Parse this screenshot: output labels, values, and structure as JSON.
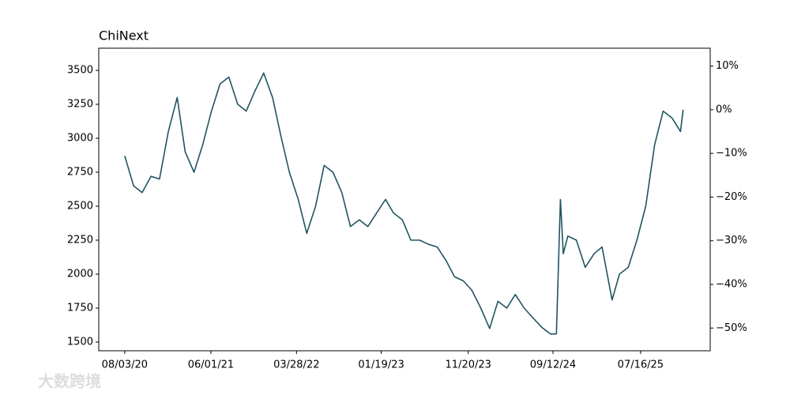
{
  "chart_data": {
    "type": "line",
    "title": "ChiNext",
    "x": [
      "08/03/20",
      "09/03/20",
      "10/03/20",
      "11/03/20",
      "12/03/20",
      "01/03/21",
      "02/03/21",
      "03/03/21",
      "04/03/21",
      "05/03/21",
      "06/03/21",
      "07/03/21",
      "08/03/21",
      "09/03/21",
      "10/03/21",
      "11/03/21",
      "12/03/21",
      "01/03/22",
      "02/03/22",
      "03/03/22",
      "04/03/22",
      "05/03/22",
      "06/03/22",
      "07/03/22",
      "08/03/22",
      "09/03/22",
      "10/03/22",
      "11/03/22",
      "12/03/22",
      "01/03/23",
      "02/03/23",
      "03/03/23",
      "04/03/23",
      "05/03/23",
      "06/03/23",
      "07/03/23",
      "08/03/23",
      "09/03/23",
      "10/03/23",
      "11/03/23",
      "12/03/23",
      "01/03/24",
      "02/03/24",
      "03/03/24",
      "04/03/24",
      "05/03/24",
      "06/03/24",
      "07/03/24",
      "08/03/24",
      "09/03/24",
      "09/24/24",
      "10/08/24",
      "10/18/24",
      "11/03/24",
      "12/03/24",
      "01/03/25",
      "02/03/25",
      "03/03/25",
      "04/07/25",
      "05/03/25",
      "06/03/25",
      "07/03/25",
      "08/03/25",
      "09/03/25",
      "10/03/25",
      "11/03/25",
      "12/03/25",
      "12/12/25"
    ],
    "series": [
      {
        "name": "ChiNext",
        "color": "#1f5560",
        "values": [
          2870,
          2650,
          2600,
          2720,
          2700,
          3050,
          3300,
          2900,
          2750,
          2950,
          3200,
          3400,
          3450,
          3250,
          3200,
          3350,
          3480,
          3300,
          3000,
          2750,
          2550,
          2300,
          2500,
          2800,
          2750,
          2600,
          2350,
          2400,
          2350,
          2450,
          2550,
          2450,
          2400,
          2250,
          2250,
          2220,
          2200,
          2100,
          1980,
          1950,
          1880,
          1750,
          1600,
          1800,
          1750,
          1850,
          1750,
          1680,
          1610,
          1560,
          1560,
          2550,
          2150,
          2280,
          2250,
          2050,
          2150,
          2200,
          1810,
          2000,
          2050,
          2250,
          2500,
          2950,
          3200,
          3150,
          3050,
          3210
        ]
      }
    ],
    "xlim": [
      "05/04/20",
      "03/17/26"
    ],
    "xticks": [
      "08/03/20",
      "06/01/21",
      "03/28/22",
      "01/19/23",
      "11/20/23",
      "09/12/24",
      "07/16/25"
    ],
    "ylim": [
      1436,
      3663
    ],
    "yticks": [
      1500,
      1750,
      2000,
      2250,
      2500,
      2750,
      3000,
      3250,
      3500
    ],
    "y2lim": [
      -55.2,
      14.1
    ],
    "y2ticks": [
      {
        "value": -50,
        "label": "−50%"
      },
      {
        "value": -40,
        "label": "−40%"
      },
      {
        "value": -30,
        "label": "−30%"
      },
      {
        "value": -20,
        "label": "−20%"
      },
      {
        "value": -10,
        "label": "−10%"
      },
      {
        "value": 0,
        "label": "0%"
      },
      {
        "value": 10,
        "label": "10%"
      }
    ],
    "grid": false
  },
  "watermark": "大数跨境"
}
